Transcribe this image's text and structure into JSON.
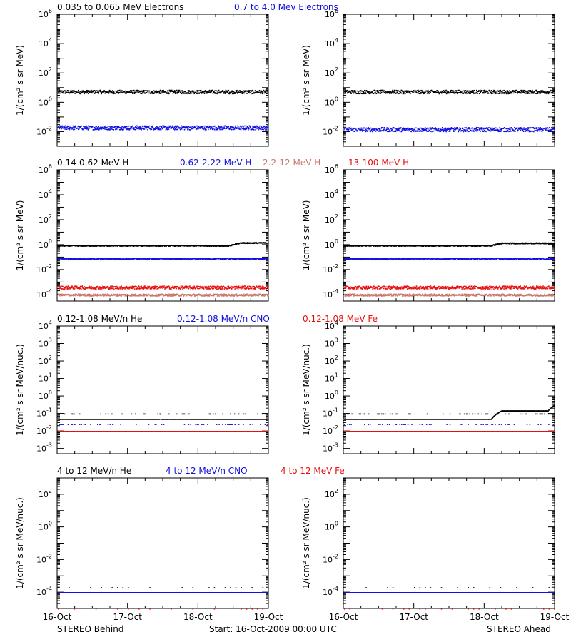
{
  "colors": {
    "black": "#000000",
    "blue": "#1010e0",
    "salmon": "#c8786e",
    "red": "#e81010"
  },
  "chart_data": [
    {
      "type": "scatter",
      "row": 1,
      "scale": "log",
      "ylim": [
        0.001,
        1000000
      ],
      "ytick_exponents": [
        -2,
        0,
        2,
        4,
        6
      ],
      "ylabel": "1/(cm² s sr MeV)",
      "legend": [
        "0.035 to 0.065 MeV Electrons",
        "0.7 to 4.0 Mev Electrons"
      ],
      "x": [
        "16-Oct",
        "17-Oct",
        "18-Oct",
        "19-Oct"
      ],
      "panels": {
        "behind": {
          "series": [
            {
              "name": "0.035 to 0.065 MeV Electrons",
              "color": "black",
              "level": 5.5,
              "scatter_dex": 0.12
            },
            {
              "name": "0.7 to 4.0 Mev Electrons",
              "color": "blue",
              "level": 0.02,
              "scatter_dex": 0.14
            }
          ]
        },
        "ahead": {
          "series": [
            {
              "name": "0.035 to 0.065 MeV Electrons",
              "color": "black",
              "level": 5.5,
              "scatter_dex": 0.12
            },
            {
              "name": "0.7 to 4.0 Mev Electrons",
              "color": "blue",
              "level": 0.015,
              "scatter_dex": 0.14
            }
          ]
        }
      }
    },
    {
      "type": "scatter",
      "row": 2,
      "scale": "log",
      "ylim": [
        3e-05,
        1000000
      ],
      "ytick_exponents": [
        -4,
        -2,
        0,
        2,
        4,
        6
      ],
      "ylabel": "1/(cm² s sr MeV)",
      "legend": [
        "0.14-0.62 MeV H",
        "0.62-2.22 MeV H",
        "2.2-12 MeV H",
        "13-100 MeV H"
      ],
      "x": [
        "16-Oct",
        "17-Oct",
        "18-Oct",
        "19-Oct"
      ],
      "panels": {
        "behind": {
          "series": [
            {
              "name": "0.14-0.62 MeV H",
              "color": "black",
              "level": 0.9,
              "scatter_dex": 0.04,
              "rise": [
                [
                  0.82,
                  1.5
                ],
                [
                  1.0,
                  2.0
                ]
              ]
            },
            {
              "name": "0.62-2.22 MeV H",
              "color": "blue",
              "level": 0.08,
              "scatter_dex": 0.05
            },
            {
              "name": "2.2-12 MeV H",
              "color": "salmon",
              "level": 0.0001,
              "scatter_dex": 0.08
            },
            {
              "name": "13-100 MeV H",
              "color": "red",
              "level": 0.0004,
              "scatter_dex": 0.12
            }
          ]
        },
        "ahead": {
          "series": [
            {
              "name": "0.14-0.62 MeV H",
              "color": "black",
              "level": 0.9,
              "scatter_dex": 0.04,
              "rise": [
                [
                  0.7,
                  1.4
                ],
                [
                  1.0,
                  2.0
                ]
              ]
            },
            {
              "name": "0.62-2.22 MeV H",
              "color": "blue",
              "level": 0.08,
              "scatter_dex": 0.05,
              "rise": [
                [
                  1.0,
                  0.11
                ]
              ]
            },
            {
              "name": "2.2-12 MeV H",
              "color": "salmon",
              "level": 0.0001,
              "scatter_dex": 0.08
            },
            {
              "name": "13-100 MeV H",
              "color": "red",
              "level": 0.0004,
              "scatter_dex": 0.12
            }
          ]
        }
      }
    },
    {
      "type": "scatter",
      "row": 3,
      "scale": "log",
      "ylim": [
        0.0005,
        10000
      ],
      "ytick_exponents": [
        -3,
        -2,
        -1,
        0,
        1,
        2,
        3,
        4
      ],
      "ylabel": "1/(cm² s sr MeV/nuc.)",
      "legend": [
        "0.12-1.08 MeV/n He",
        "0.12-1.08 MeV/n CNO",
        "0.12-1.08 MeV Fe"
      ],
      "x": [
        "16-Oct",
        "17-Oct",
        "18-Oct",
        "19-Oct"
      ],
      "panels": {
        "behind": {
          "series": [
            {
              "name": "0.12-1.08 MeV/n He",
              "color": "black",
              "level": 0.05,
              "upper": 0.1,
              "scatter_dex": 0.0
            },
            {
              "name": "0.12-1.08 MeV/n CNO",
              "color": "blue",
              "level": 0.01,
              "upper": 0.025,
              "scatter_dex": 0.0
            },
            {
              "name": "0.12-1.08 MeV Fe",
              "color": "red",
              "level": 0.01,
              "scatter_dex": 0.0
            }
          ]
        },
        "ahead": {
          "series": [
            {
              "name": "0.12-1.08 MeV/n He",
              "color": "black",
              "level": 0.05,
              "upper": 0.1,
              "scatter_dex": 0.0,
              "rise": [
                [
                  0.7,
                  0.15
                ],
                [
                  0.95,
                  0.3
                ]
              ]
            },
            {
              "name": "0.12-1.08 MeV/n CNO",
              "color": "blue",
              "level": 0.01,
              "upper": 0.025,
              "scatter_dex": 0.0
            },
            {
              "name": "0.12-1.08 MeV Fe",
              "color": "red",
              "level": 0.01,
              "scatter_dex": 0.0
            }
          ]
        }
      }
    },
    {
      "type": "scatter",
      "row": 4,
      "scale": "log",
      "ylim": [
        1e-05,
        1000
      ],
      "ytick_exponents": [
        -4,
        -2,
        0,
        2
      ],
      "ylabel": "1/(cm² s sr MeV/nuc.)",
      "legend": [
        "4 to 12 MeV/n He",
        "4 to 12 MeV/n CNO",
        "4 to 12 MeV Fe"
      ],
      "x": [
        "16-Oct",
        "17-Oct",
        "18-Oct",
        "19-Oct"
      ],
      "panels": {
        "behind": {
          "series": [
            {
              "name": "4 to 12 MeV/n He",
              "color": "black",
              "level": 0.0002,
              "upper": 0.0002,
              "scatter_dex": 0.0,
              "sparse": true
            },
            {
              "name": "4 to 12 MeV/n CNO",
              "color": "blue",
              "level": 0.0001,
              "scatter_dex": 0.0
            },
            {
              "name": "4 to 12 MeV Fe",
              "color": "red",
              "level": 1e-05,
              "scatter_dex": 0.0,
              "sparse": true
            }
          ]
        },
        "ahead": {
          "series": [
            {
              "name": "4 to 12 MeV/n He",
              "color": "black",
              "level": 0.0002,
              "upper": 0.0002,
              "scatter_dex": 0.0,
              "sparse": true
            },
            {
              "name": "4 to 12 MeV/n CNO",
              "color": "blue",
              "level": 0.0001,
              "scatter_dex": 0.0
            },
            {
              "name": "4 to 12 MeV Fe",
              "color": "red",
              "level": 1e-05,
              "scatter_dex": 0.0,
              "sparse": true
            }
          ]
        }
      }
    }
  ],
  "footer": {
    "left": "STEREO Behind",
    "center": "Start: 16-Oct-2009 00:00 UTC",
    "right": "STEREO Ahead"
  }
}
